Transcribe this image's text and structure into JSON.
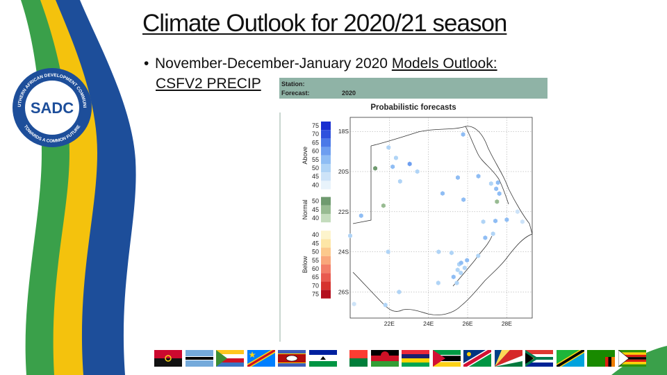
{
  "slide": {
    "title": "Climate Outlook for 2020/21 season",
    "bullet_prefix": "November-December-January 2020 ",
    "bullet_link": "Models Outlook:",
    "bullet_line2": "CSFV2 PRECIP"
  },
  "logo": {
    "center_text": "SADC",
    "ring_top": "SOUTHERN AFRICAN DEVELOPMENT COMMUNITY",
    "ring_bottom": "TOWARDS A COMMON FUTURE",
    "colors": {
      "blue": "#1d4e9a",
      "green": "#3aa04a",
      "yellow": "#f4c20d"
    }
  },
  "forecast_map": {
    "station_label": "Station:",
    "forecast_label": "Forecast:",
    "forecast_value": "2020",
    "title": "Probabilistic forecasts",
    "legend": {
      "above": {
        "label": "Above",
        "values": [
          "75",
          "70",
          "65",
          "60",
          "55",
          "50",
          "45",
          "40"
        ],
        "colors": [
          "#1a2fd0",
          "#2f52dd",
          "#4b79e8",
          "#6d9ef0",
          "#8fbdf4",
          "#b0d4f6",
          "#cde3f8",
          "#e8f3fb"
        ]
      },
      "normal": {
        "label": "Normal",
        "values": [
          "50",
          "45",
          "40"
        ],
        "colors": [
          "#6f9a6f",
          "#98bb92",
          "#c4dcbd"
        ]
      },
      "below": {
        "label": "Below",
        "values": [
          "40",
          "45",
          "50",
          "55",
          "60",
          "65",
          "70",
          "75"
        ],
        "colors": [
          "#fdf4cc",
          "#fde6a6",
          "#fcc98c",
          "#f9a77b",
          "#f27e68",
          "#e85a4f",
          "#d6332e",
          "#b30f1e"
        ]
      }
    },
    "lat_ticks": [
      "18S",
      "20S",
      "22S",
      "24S",
      "26S"
    ],
    "lon_ticks": [
      "22E",
      "24E",
      "26E",
      "28E"
    ],
    "points": [
      {
        "lon": 21.96,
        "lat": -18.8,
        "cat": "above",
        "prob": 50
      },
      {
        "lon": 22.34,
        "lat": -19.32,
        "cat": "above",
        "prob": 50
      },
      {
        "lon": 22.17,
        "lat": -19.76,
        "cat": "above",
        "prob": 55
      },
      {
        "lon": 23.04,
        "lat": -19.62,
        "cat": "above",
        "prob": 60
      },
      {
        "lon": 21.28,
        "lat": -19.84,
        "cat": "normal",
        "prob": 50
      },
      {
        "lon": 23.43,
        "lat": -20.0,
        "cat": "above",
        "prob": 50
      },
      {
        "lon": 22.55,
        "lat": -20.49,
        "cat": "above",
        "prob": 50
      },
      {
        "lon": 25.77,
        "lat": -18.15,
        "cat": "above",
        "prob": 55
      },
      {
        "lon": 26.55,
        "lat": -20.23,
        "cat": "above",
        "prob": 55
      },
      {
        "lon": 25.5,
        "lat": -20.3,
        "cat": "above",
        "prob": 55
      },
      {
        "lon": 27.2,
        "lat": -20.6,
        "cat": "above",
        "prob": 50
      },
      {
        "lon": 27.55,
        "lat": -20.55,
        "cat": "above",
        "prob": 55
      },
      {
        "lon": 27.46,
        "lat": -20.86,
        "cat": "above",
        "prob": 55
      },
      {
        "lon": 27.62,
        "lat": -21.1,
        "cat": "above",
        "prob": 55
      },
      {
        "lon": 27.5,
        "lat": -21.5,
        "cat": "normal",
        "prob": 45
      },
      {
        "lon": 24.72,
        "lat": -21.09,
        "cat": "above",
        "prob": 55
      },
      {
        "lon": 25.79,
        "lat": -21.4,
        "cat": "above",
        "prob": 55
      },
      {
        "lon": 21.7,
        "lat": -21.7,
        "cat": "normal",
        "prob": 45
      },
      {
        "lon": 20.56,
        "lat": -22.2,
        "cat": "above",
        "prob": 55
      },
      {
        "lon": 26.8,
        "lat": -22.5,
        "cat": "above",
        "prob": 50
      },
      {
        "lon": 27.42,
        "lat": -22.46,
        "cat": "above",
        "prob": 55
      },
      {
        "lon": 28.0,
        "lat": -22.4,
        "cat": "above",
        "prob": 55
      },
      {
        "lon": 28.55,
        "lat": -22.0,
        "cat": "above",
        "prob": 45
      },
      {
        "lon": 28.8,
        "lat": -22.5,
        "cat": "above",
        "prob": 45
      },
      {
        "lon": 27.3,
        "lat": -23.1,
        "cat": "above",
        "prob": 50
      },
      {
        "lon": 26.9,
        "lat": -23.3,
        "cat": "above",
        "prob": 55
      },
      {
        "lon": 20.0,
        "lat": -23.2,
        "cat": "above",
        "prob": 50
      },
      {
        "lon": 21.94,
        "lat": -24.0,
        "cat": "above",
        "prob": 50
      },
      {
        "lon": 24.52,
        "lat": -24.0,
        "cat": "above",
        "prob": 50
      },
      {
        "lon": 25.18,
        "lat": -24.05,
        "cat": "above",
        "prob": 50
      },
      {
        "lon": 26.54,
        "lat": -24.2,
        "cat": "above",
        "prob": 50
      },
      {
        "lon": 25.97,
        "lat": -24.42,
        "cat": "above",
        "prob": 55
      },
      {
        "lon": 25.57,
        "lat": -24.62,
        "cat": "above",
        "prob": 50
      },
      {
        "lon": 25.49,
        "lat": -24.9,
        "cat": "above",
        "prob": 50
      },
      {
        "lon": 25.67,
        "lat": -24.55,
        "cat": "above",
        "prob": 55
      },
      {
        "lon": 25.85,
        "lat": -24.8,
        "cat": "above",
        "prob": 50
      },
      {
        "lon": 25.65,
        "lat": -25.05,
        "cat": "above",
        "prob": 50
      },
      {
        "lon": 25.28,
        "lat": -25.25,
        "cat": "above",
        "prob": 55
      },
      {
        "lon": 25.45,
        "lat": -25.55,
        "cat": "above",
        "prob": 50
      },
      {
        "lon": 24.5,
        "lat": -25.55,
        "cat": "above",
        "prob": 50
      },
      {
        "lon": 22.5,
        "lat": -26.0,
        "cat": "above",
        "prob": 50
      },
      {
        "lon": 21.8,
        "lat": -26.65,
        "cat": "above",
        "prob": 50
      },
      {
        "lon": 20.2,
        "lat": -26.6,
        "cat": "above",
        "prob": 45
      }
    ]
  },
  "member_flags": [
    "Angola",
    "Botswana",
    "Comoros",
    "DR Congo",
    "Eswatini",
    "Lesotho",
    "Madagascar",
    "Malawi",
    "Mauritius",
    "Mozambique",
    "Namibia",
    "Seychelles",
    "South Africa",
    "Tanzania",
    "Zambia",
    "Zimbabwe"
  ]
}
